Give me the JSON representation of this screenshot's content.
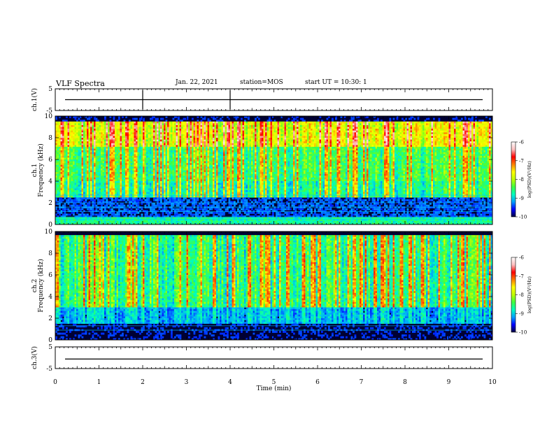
{
  "header": {
    "title": "VLF Spectra",
    "date": "Jan. 22, 2021",
    "station": "station=MOS",
    "start": "start UT =  10:30: 1"
  },
  "colors": {
    "colormap": [
      "#000040",
      "#0000ff",
      "#00a0ff",
      "#00ffc0",
      "#40ff40",
      "#c0ff00",
      "#ffff00",
      "#ff8000",
      "#ff0000",
      "#ffc0c0",
      "#ffffff"
    ],
    "frame": "#000000"
  },
  "chart_data": [
    {
      "type": "line",
      "name": "ch1-waveform",
      "ylabel": "ch.1(V)",
      "ylim": [
        -5,
        5
      ],
      "yticks": [
        "5",
        "-5"
      ],
      "xlim": [
        0,
        10
      ],
      "values_description": "flat trace near 0 V",
      "level": 0
    },
    {
      "type": "heatmap",
      "name": "ch1-spectrogram",
      "ylabel": "ch.1\nFrequency (kHz)",
      "ylabel_line1": "ch.1",
      "ylabel_line2": "Frequency (kHz)",
      "ylim": [
        0,
        10
      ],
      "yticks": [
        "0",
        "2",
        "4",
        "6",
        "8",
        "10"
      ],
      "xlim": [
        0,
        10
      ],
      "colorbar": {
        "label": "log(PSD)(V²/Hz)",
        "range": [
          -10,
          -6
        ],
        "ticks": [
          "-6",
          "-7",
          "-8",
          "-9",
          "-10"
        ]
      }
    },
    {
      "type": "heatmap",
      "name": "ch2-spectrogram",
      "ylabel": "ch.2\nFrequency (kHz)",
      "ylabel_line1": "ch.2",
      "ylabel_line2": "Frequency (kHz)",
      "ylim": [
        0,
        10
      ],
      "yticks": [
        "0",
        "2",
        "4",
        "6",
        "8",
        "10"
      ],
      "xlim": [
        0,
        10
      ],
      "colorbar": {
        "label": "log(PSD)(V²/Hz)",
        "range": [
          -10,
          -6
        ],
        "ticks": [
          "-6",
          "-7",
          "-8",
          "-9",
          "-10"
        ]
      }
    },
    {
      "type": "line",
      "name": "ch3-waveform",
      "ylabel": "ch.3(V)",
      "ylim": [
        -5,
        5
      ],
      "yticks": [
        "5",
        "-5"
      ],
      "xlim": [
        0,
        10
      ],
      "values_description": "flat trace near 0 V",
      "level": -0.6
    }
  ],
  "xaxis": {
    "label": "Time (min)",
    "ticks": [
      "0",
      "1",
      "2",
      "3",
      "4",
      "5",
      "6",
      "7",
      "8",
      "9",
      "10"
    ]
  }
}
